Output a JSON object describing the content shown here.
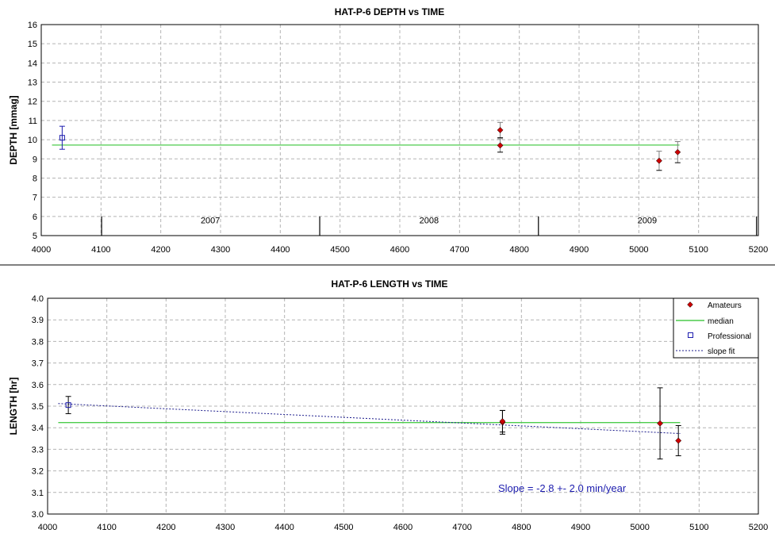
{
  "chart_data": [
    {
      "type": "scatter",
      "title": "HAT-P-6 DEPTH vs TIME",
      "xlabel": "",
      "ylabel": "DEPTH [mmag]",
      "xlim": [
        4000,
        5200
      ],
      "ylim": [
        5,
        16
      ],
      "xticks": [
        4000,
        4100,
        4200,
        4300,
        4400,
        4500,
        4600,
        4700,
        4800,
        4900,
        5000,
        5100,
        5200
      ],
      "yticks": [
        5,
        6,
        7,
        8,
        9,
        10,
        11,
        12,
        13,
        14,
        15,
        16
      ],
      "grid": true,
      "year_markers": [
        4101,
        4466,
        4832,
        5197
      ],
      "year_labels": [
        {
          "label": "2007",
          "x": 4283
        },
        {
          "label": "2008",
          "x": 4649
        },
        {
          "label": "2009",
          "x": 5014
        }
      ],
      "series": [
        {
          "name": "Amateurs",
          "points": [
            {
              "x": 4768,
              "y": 10.5,
              "err": 0.4
            },
            {
              "x": 4768,
              "y": 9.7,
              "err": 0.35
            },
            {
              "x": 5034,
              "y": 8.9,
              "err": 0.5
            },
            {
              "x": 5065,
              "y": 9.35,
              "err": 0.55
            }
          ]
        },
        {
          "name": "Professional",
          "points": [
            {
              "x": 4035,
              "y": 10.1,
              "err": 0.6
            }
          ]
        },
        {
          "name": "median",
          "x": [
            4018,
            5068
          ],
          "y": [
            9.72,
            9.72
          ]
        }
      ]
    },
    {
      "type": "scatter",
      "title": "HAT-P-6 LENGTH vs TIME",
      "xlabel": "",
      "ylabel": "LENGTH [hr]",
      "xlim": [
        4000,
        5200
      ],
      "ylim": [
        3.0,
        4.0
      ],
      "xticks": [
        4000,
        4100,
        4200,
        4300,
        4400,
        4500,
        4600,
        4700,
        4800,
        4900,
        5000,
        5100,
        5200
      ],
      "yticks": [
        "3.0",
        "3.1",
        "3.2",
        "3.3",
        "3.4",
        "3.5",
        "3.6",
        "3.7",
        "3.8",
        "3.9",
        "4.0"
      ],
      "grid": true,
      "legend_position": "top-right",
      "annotation": "Slope = -2.8 +- 2.0 min/year",
      "series": [
        {
          "name": "Amateurs",
          "points": [
            {
              "x": 4768,
              "y": 3.425,
              "err": 0.055
            },
            {
              "x": 4768,
              "y": 3.43,
              "err": 0.05
            },
            {
              "x": 5034,
              "y": 3.42,
              "err": 0.165
            },
            {
              "x": 5065,
              "y": 3.34,
              "err": 0.07
            }
          ]
        },
        {
          "name": "median",
          "x": [
            4018,
            5068
          ],
          "y": [
            3.424,
            3.424
          ]
        },
        {
          "name": "Professional",
          "points": [
            {
              "x": 4035,
              "y": 3.505,
              "err": 0.04
            }
          ]
        },
        {
          "name": "slope fit",
          "x": [
            4018,
            5068
          ],
          "y": [
            3.512,
            3.373
          ]
        }
      ]
    }
  ],
  "colors": {
    "amateur": "#cc0000",
    "professional": "#1c1cae",
    "median": "#4ccc4c",
    "slope_fit": "#1c1c8c",
    "grid": "#b4b4b4",
    "error_bar_top": "#808080",
    "error_bar_bottom": "#000000"
  }
}
